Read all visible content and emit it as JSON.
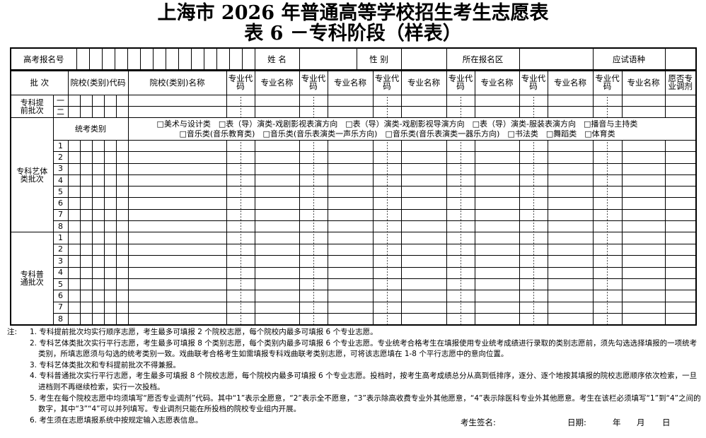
{
  "title": {
    "line1": "上海市 2026 年普通高等学校招生考生志愿表",
    "line2": "表 6 －专科阶段（样表）"
  },
  "info_row": {
    "exam_no_label": "高考报名号",
    "name_label": "姓  名",
    "gender_label": "性  别",
    "district_label": "所在报名区",
    "language_label": "应试语种"
  },
  "header": {
    "batch": "批  次",
    "school_code": "院校(类别)代码",
    "school_name": "院校(类别)名称",
    "major_code": "专业代码",
    "major_name": "专业名称",
    "adjust": "愿否专业调剂"
  },
  "early_batch": {
    "label": "专科提前批次",
    "rows": [
      "一",
      "二"
    ]
  },
  "art_batch": {
    "label": "专科艺体类批次",
    "category_label": "统考类别",
    "options_line1": [
      "□美术与设计类",
      "□表（导）演类-戏剧影视表演方向",
      "□表（导）演类-戏剧影视导演方向",
      "□表（导）演类-服装表演方向",
      "□播音与主持类"
    ],
    "options_line2": [
      "□音乐类(音乐教育类)",
      "□音乐类(音乐表演类一声乐方向)",
      "□音乐类(音乐表演类一器乐方向)",
      "□书法类",
      "□舞蹈类",
      "□体育类"
    ],
    "rows": [
      "1",
      "2",
      "3",
      "4",
      "5",
      "6",
      "7",
      "8"
    ]
  },
  "regular_batch": {
    "label": "专科普通批次",
    "rows": [
      "1",
      "2",
      "3",
      "4",
      "5",
      "6",
      "7",
      "8"
    ]
  },
  "notes": {
    "prefix": "注:",
    "items": [
      "1. 专科提前批次均实行顺序志愿，考生最多可填报 2 个院校志愿，每个院校内最多可填报 6 个专业志愿。",
      "2. 专科艺体类批次实行平行志愿，考生最多可填报 8 个类别志愿，每个类别内最多可填报 6 个专业志愿。专业统考合格考生在填报使用专业统考成绩进行录取的类别志愿前，须先勾选选择填报的一项统考类别，所填志愿须与勾选的统考类别一致。戏曲联考合格考生如需填报专科戏曲联考类别志愿，可将该志愿填在 1-8 个平行志愿中的意向位置。",
      "3. 专科艺体类批次和专科提前批次不得兼报。",
      "4. 专科普通批次实行平行志愿，考生最多可填报 8 个院校志愿，每个院校内最多可填报 6 个专业志愿。投档时，按考生高考成绩总分从高到低排序，逐分、逐个地按其填报的院校志愿顺序依次检索，一旦进档则不再继续检索，实行一次投档。",
      "5. 考生在每个院校志愿中均须填写“愿否专业调剂”代码。其中“1”表示全愿意，“2”表示全不愿意，“3”表示除高收费专业外其他愿意，“4”表示除医科专业外其他愿意。考生在该栏必须填写“1”到“4”之间的数字，其中“3”“4”可以并列填写。专业调剂只能在所投档的院校专业组内开展。",
      "6. 考生须在志愿填报系统中按规定输入志愿表信息。"
    ]
  },
  "signature": {
    "signature_label": "考生签名:",
    "date_label": "日期:",
    "year": "年",
    "month": "月",
    "day": "日"
  }
}
